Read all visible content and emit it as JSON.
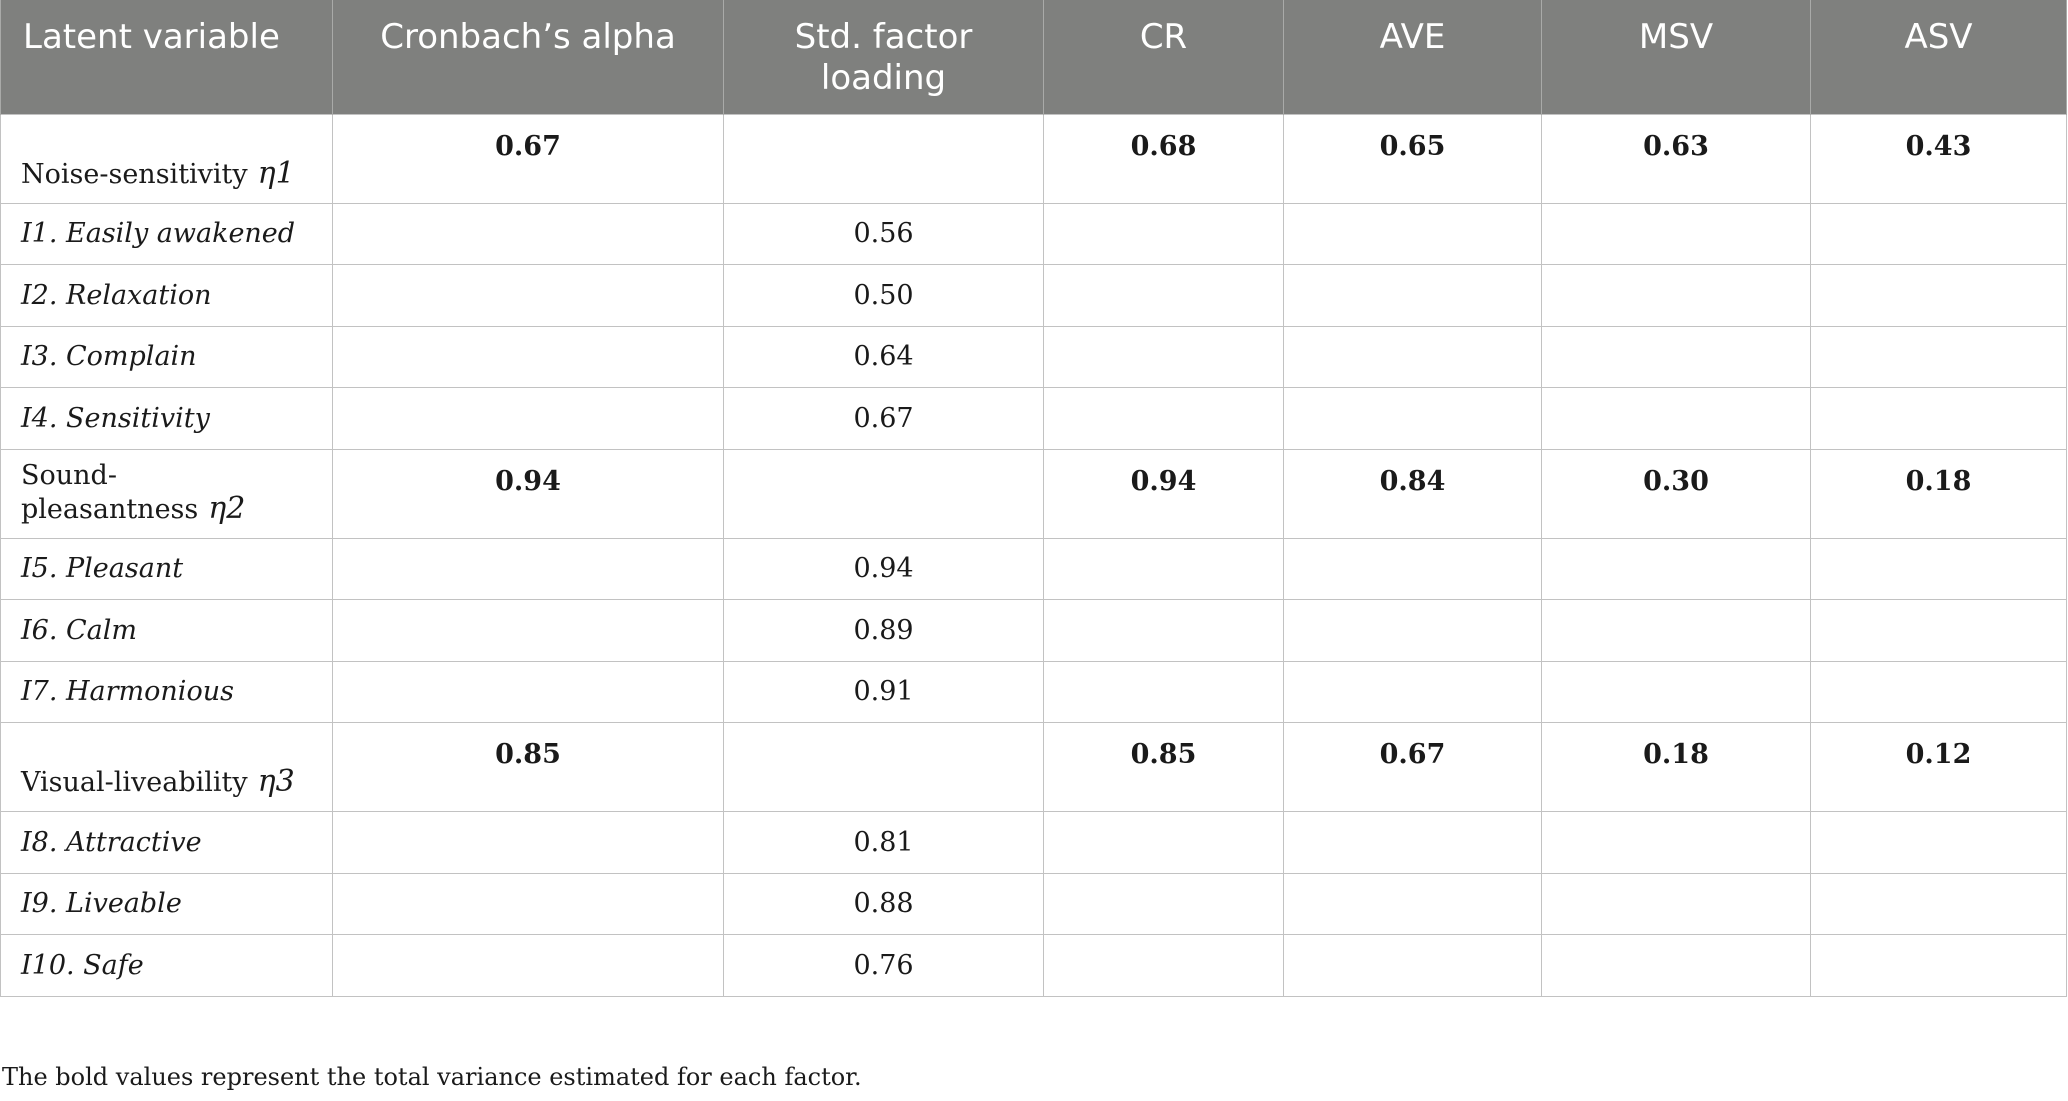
{
  "headers": [
    "Latent variable",
    "Cronbach’s alpha",
    "Std. factor loading",
    "CR",
    "AVE",
    "MSV",
    "ASV"
  ],
  "rows": [
    {
      "type": "factor",
      "label": "Noise-sensitivity",
      "eta": "η1",
      "alpha": "0.67",
      "loading": "",
      "cr": "0.68",
      "ave": "0.65",
      "msv": "0.63",
      "asv": "0.43"
    },
    {
      "type": "item",
      "label": "I1. Easily awakened",
      "alpha": "",
      "loading": "0.56",
      "cr": "",
      "ave": "",
      "msv": "",
      "asv": ""
    },
    {
      "type": "item",
      "label": "I2. Relaxation",
      "alpha": "",
      "loading": "0.50",
      "cr": "",
      "ave": "",
      "msv": "",
      "asv": ""
    },
    {
      "type": "item",
      "label": "I3. Complain",
      "alpha": "",
      "loading": "0.64",
      "cr": "",
      "ave": "",
      "msv": "",
      "asv": ""
    },
    {
      "type": "item",
      "label": "I4. Sensitivity",
      "alpha": "",
      "loading": "0.67",
      "cr": "",
      "ave": "",
      "msv": "",
      "asv": ""
    },
    {
      "type": "factor",
      "label": "Sound-pleasantness",
      "eta": "η2",
      "alpha": "0.94",
      "loading": "",
      "cr": "0.94",
      "ave": "0.84",
      "msv": "0.30",
      "asv": "0.18"
    },
    {
      "type": "item",
      "label": "I5. Pleasant",
      "alpha": "",
      "loading": "0.94",
      "cr": "",
      "ave": "",
      "msv": "",
      "asv": ""
    },
    {
      "type": "item",
      "label": "I6. Calm",
      "alpha": "",
      "loading": "0.89",
      "cr": "",
      "ave": "",
      "msv": "",
      "asv": ""
    },
    {
      "type": "item",
      "label": "I7. Harmonious",
      "alpha": "",
      "loading": "0.91",
      "cr": "",
      "ave": "",
      "msv": "",
      "asv": ""
    },
    {
      "type": "factor",
      "label": "Visual-liveability",
      "eta": "η3",
      "alpha": "0.85",
      "loading": "",
      "cr": "0.85",
      "ave": "0.67",
      "msv": "0.18",
      "asv": "0.12"
    },
    {
      "type": "item",
      "label": "I8. Attractive",
      "alpha": "",
      "loading": "0.81",
      "cr": "",
      "ave": "",
      "msv": "",
      "asv": ""
    },
    {
      "type": "item",
      "label": "I9. Liveable",
      "alpha": "",
      "loading": "0.88",
      "cr": "",
      "ave": "",
      "msv": "",
      "asv": ""
    },
    {
      "type": "item",
      "label": "I10. Safe",
      "alpha": "",
      "loading": "0.76",
      "cr": "",
      "ave": "",
      "msv": "",
      "asv": ""
    }
  ],
  "footnote": "The bold values represent the total variance estimated for each factor.",
  "colors": {
    "header_bg": "#7f807e",
    "header_text": "#ffffff",
    "grid": "#c2c2c2"
  }
}
